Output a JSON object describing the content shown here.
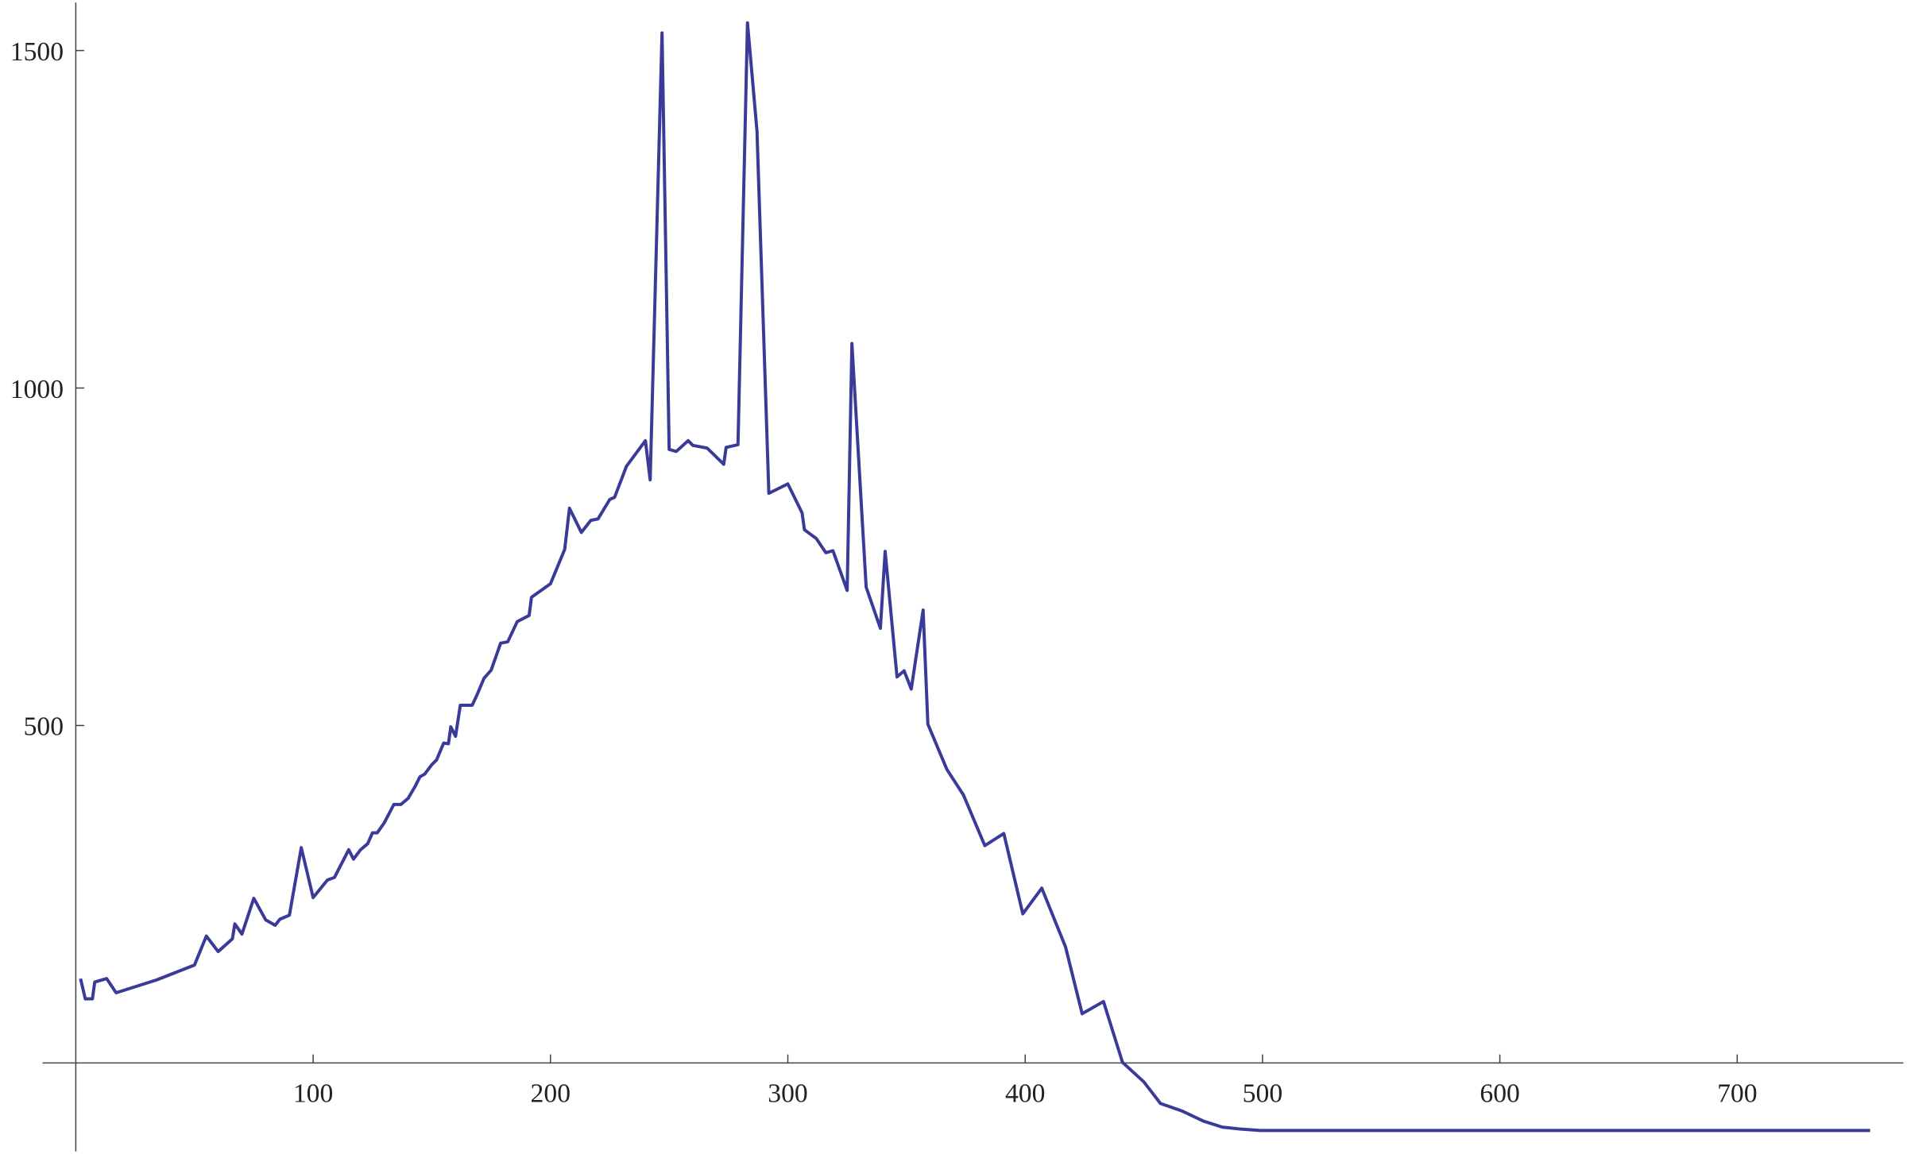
{
  "chart_data": {
    "type": "line",
    "x": [
      2,
      4,
      7,
      8,
      13,
      17,
      34,
      50,
      55,
      60,
      66,
      67,
      70,
      75,
      80,
      84,
      86,
      90,
      95,
      100,
      106,
      109,
      115,
      117,
      120,
      123,
      125,
      127,
      130,
      134,
      137,
      140,
      143,
      145,
      147,
      150,
      152,
      155,
      157,
      158,
      160,
      162,
      167,
      169,
      172,
      175,
      179,
      182,
      186,
      191,
      192,
      200,
      206,
      208,
      213,
      217,
      220,
      225,
      227,
      232,
      240,
      242,
      247,
      250,
      253,
      258,
      260,
      266,
      273,
      274,
      279,
      283,
      287,
      292,
      300,
      306,
      307,
      312,
      316,
      319,
      325,
      327,
      333,
      339,
      341,
      346,
      349,
      352,
      357,
      359,
      367,
      374,
      383,
      391,
      399,
      407,
      417,
      424,
      433,
      441,
      450,
      457,
      466,
      475,
      483,
      491,
      499,
      756
    ],
    "series": [
      {
        "color": "#3a3a99",
        "values": [
          125,
          95,
          95,
          120,
          125,
          104,
          123,
          145,
          188,
          165,
          184,
          206,
          191,
          244,
          212,
          204,
          213,
          219,
          319,
          245,
          271,
          275,
          316,
          302,
          316,
          325,
          341,
          341,
          356,
          383,
          383,
          392,
          410,
          424,
          428,
          442,
          449,
          474,
          473,
          498,
          484,
          530,
          530,
          545,
          570,
          582,
          622,
          624,
          654,
          663,
          690,
          710,
          761,
          822,
          786,
          804,
          806,
          835,
          838,
          884,
          922,
          864,
          1526,
          909,
          906,
          922,
          915,
          911,
          887,
          912,
          916,
          1541,
          1381,
          844,
          858,
          815,
          790,
          777,
          756,
          759,
          700,
          1066,
          705,
          644,
          758,
          572,
          581,
          554,
          671,
          502,
          435,
          397,
          322,
          340,
          221,
          259,
          172,
          73,
          91,
          1,
          -28,
          -60,
          -71,
          -86,
          -95,
          -98,
          -100,
          -100
        ]
      }
    ],
    "xlim": [
      -14,
      770
    ],
    "ylim": [
      -131,
      1571
    ],
    "xticks": [
      100,
      200,
      300,
      400,
      500,
      600,
      700
    ],
    "yticks": [
      500,
      1000,
      1500
    ]
  }
}
